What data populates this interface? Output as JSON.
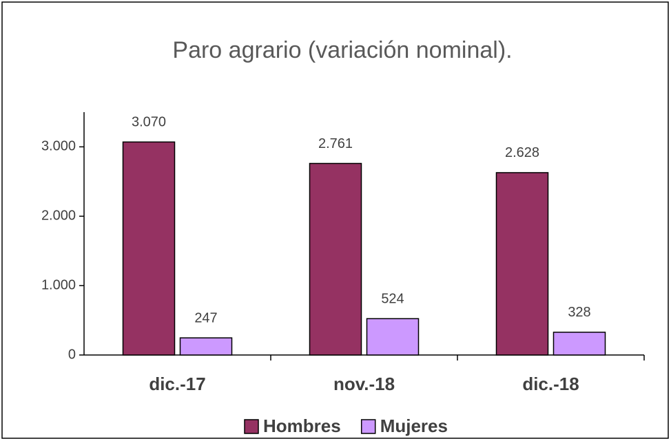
{
  "chart_data": {
    "type": "bar",
    "title": "Paro agrario (variación nominal).",
    "categories": [
      "dic.-17",
      "nov.-18",
      "dic.-18"
    ],
    "series": [
      {
        "name": "Hombres",
        "color": "#953262",
        "values": [
          3070,
          2761,
          2628
        ],
        "value_labels": [
          "3.070",
          "2.761",
          "2.628"
        ]
      },
      {
        "name": "Mujeres",
        "color": "#cc99ff",
        "values": [
          247,
          524,
          328
        ],
        "value_labels": [
          "247",
          "524",
          "328"
        ]
      }
    ],
    "ylim": [
      0,
      3500
    ],
    "yticks": [
      0,
      {
        "value": 1000,
        "label": "1.000"
      },
      {
        "value": 2000,
        "label": "2.000"
      },
      {
        "value": 3000,
        "label": "3.000"
      }
    ],
    "grid": false,
    "legend": "bottom"
  }
}
